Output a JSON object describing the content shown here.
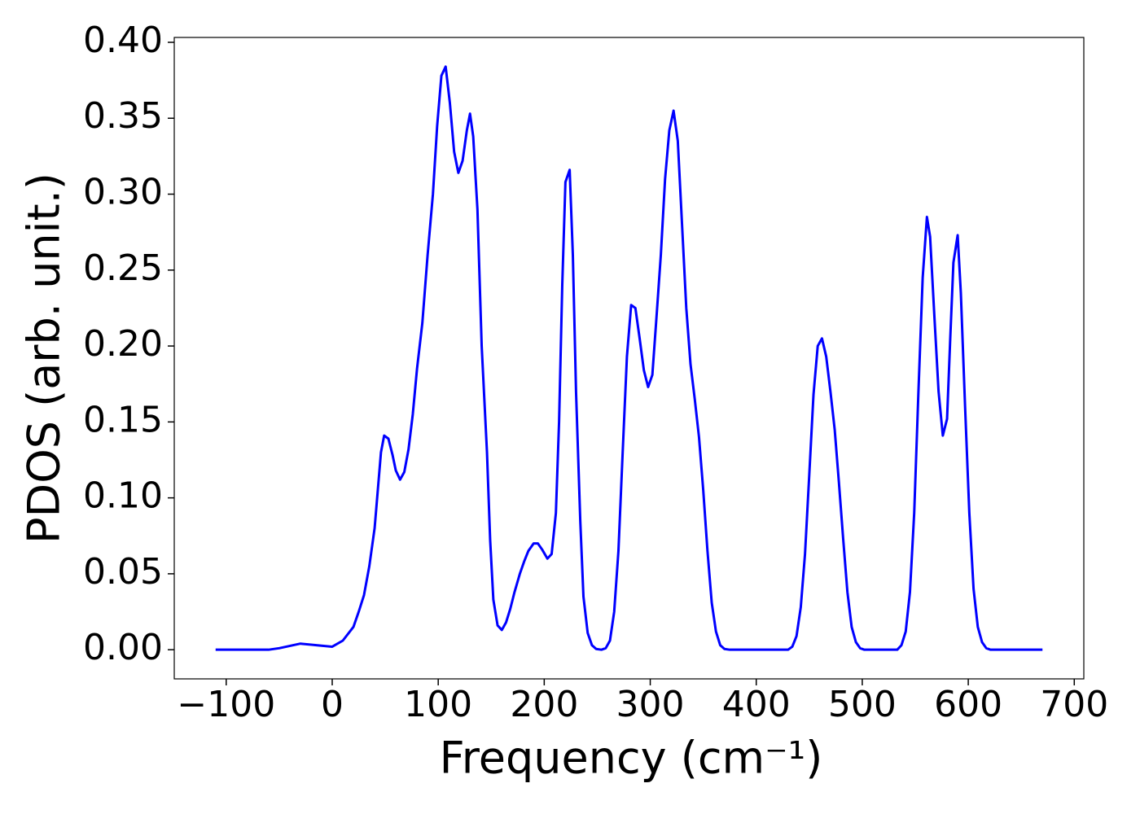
{
  "chart_data": {
    "type": "line",
    "x_label": "Frequency (cm⁻¹)",
    "y_label": "PDOS (arb. unit.)",
    "color": "#0000ff",
    "x": [
      -110,
      -60,
      -50,
      -30,
      -15,
      0,
      10,
      20,
      25,
      30,
      35,
      40,
      43,
      46,
      49,
      53,
      57,
      60,
      64,
      68,
      72,
      76,
      80,
      85,
      90,
      95,
      99,
      103,
      107,
      111,
      115,
      119,
      123,
      127,
      130,
      133,
      137,
      141,
      146,
      149,
      152,
      156,
      160,
      164,
      168,
      172,
      177,
      181,
      185,
      190,
      194,
      198,
      203,
      207,
      211,
      214,
      217,
      220,
      224,
      227,
      230,
      234,
      237,
      241,
      245,
      249,
      254,
      258,
      262,
      266,
      270,
      274,
      278,
      282,
      286,
      290,
      294,
      298,
      302,
      306,
      310,
      314,
      318,
      322,
      326,
      330,
      334,
      338,
      342,
      346,
      350,
      354,
      358,
      362,
      366,
      370,
      375,
      430,
      434,
      438,
      442,
      446,
      450,
      454,
      458,
      462,
      466,
      470,
      474,
      478,
      482,
      486,
      490,
      494,
      498,
      502,
      533,
      537,
      541,
      545,
      549,
      553,
      557,
      561,
      564,
      568,
      572,
      576,
      580,
      583,
      586,
      590,
      593,
      597,
      601,
      605,
      609,
      613,
      617,
      621,
      670
    ],
    "values": [
      0,
      0,
      0.001,
      0.004,
      0.003,
      0.002,
      0.006,
      0.015,
      0.025,
      0.036,
      0.055,
      0.08,
      0.105,
      0.13,
      0.141,
      0.139,
      0.128,
      0.118,
      0.112,
      0.117,
      0.132,
      0.155,
      0.185,
      0.215,
      0.26,
      0.3,
      0.345,
      0.378,
      0.384,
      0.36,
      0.328,
      0.314,
      0.322,
      0.342,
      0.353,
      0.338,
      0.29,
      0.2,
      0.13,
      0.072,
      0.033,
      0.016,
      0.013,
      0.018,
      0.027,
      0.038,
      0.05,
      0.058,
      0.065,
      0.07,
      0.07,
      0.066,
      0.06,
      0.063,
      0.09,
      0.15,
      0.24,
      0.308,
      0.316,
      0.26,
      0.17,
      0.085,
      0.035,
      0.011,
      0.003,
      0.0005,
      0,
      0.001,
      0.006,
      0.025,
      0.065,
      0.13,
      0.193,
      0.227,
      0.225,
      0.205,
      0.184,
      0.173,
      0.181,
      0.22,
      0.26,
      0.31,
      0.342,
      0.355,
      0.335,
      0.28,
      0.225,
      0.188,
      0.165,
      0.14,
      0.105,
      0.065,
      0.031,
      0.012,
      0.003,
      0.0005,
      0,
      0,
      0.002,
      0.009,
      0.028,
      0.063,
      0.115,
      0.168,
      0.2,
      0.205,
      0.193,
      0.17,
      0.145,
      0.11,
      0.073,
      0.038,
      0.015,
      0.005,
      0.001,
      0,
      0,
      0.003,
      0.012,
      0.038,
      0.09,
      0.17,
      0.245,
      0.285,
      0.272,
      0.22,
      0.17,
      0.141,
      0.152,
      0.205,
      0.255,
      0.273,
      0.235,
      0.16,
      0.09,
      0.04,
      0.015,
      0.005,
      0.001,
      0,
      0
    ],
    "xlim": [
      -149,
      709
    ],
    "ylim": [
      -0.0192,
      0.4032
    ],
    "xticks": [
      {
        "value": -100,
        "label": "−100"
      },
      0,
      100,
      200,
      300,
      400,
      500,
      600,
      700
    ],
    "yticks": [
      {
        "value": 0,
        "label": "0.00"
      },
      {
        "value": 0.05,
        "label": "0.05"
      },
      {
        "value": 0.1,
        "label": "0.10"
      },
      {
        "value": 0.15,
        "label": "0.15"
      },
      {
        "value": 0.2,
        "label": "0.20"
      },
      {
        "value": 0.25,
        "label": "0.25"
      },
      {
        "value": 0.3,
        "label": "0.30"
      },
      {
        "value": 0.35,
        "label": "0.35"
      },
      {
        "value": 0.4,
        "label": "0.40"
      }
    ]
  }
}
